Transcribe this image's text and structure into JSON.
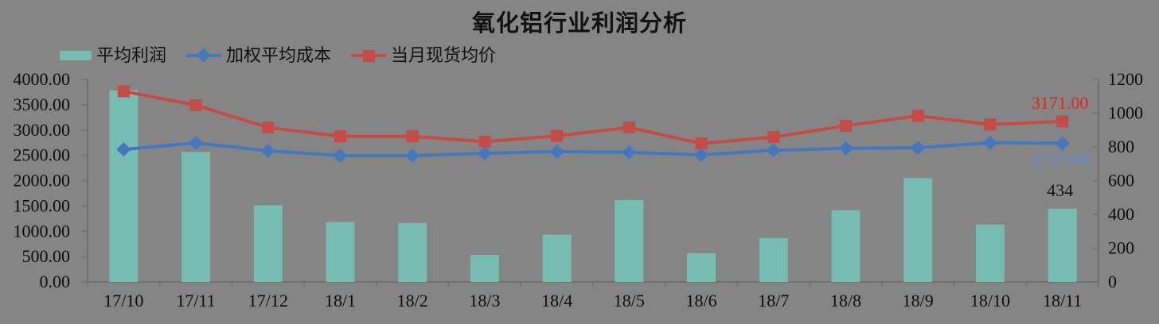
{
  "chart_data": {
    "type": "combo-bar-line",
    "title": "氧化铝行业利润分析",
    "categories": [
      "17/10",
      "17/11",
      "17/12",
      "18/1",
      "18/2",
      "18/3",
      "18/4",
      "18/5",
      "18/6",
      "18/7",
      "18/8",
      "18/9",
      "18/10",
      "18/11"
    ],
    "series": [
      {
        "name": "平均利润",
        "type": "bar",
        "axis": "right",
        "color": "#76BCB1",
        "values": [
          1135,
          770,
          455,
          355,
          350,
          160,
          280,
          485,
          170,
          260,
          425,
          615,
          340,
          434
        ],
        "end_label": "434",
        "end_label_color": "#141414"
      },
      {
        "name": "加权平均成本",
        "type": "line",
        "marker": "diamond",
        "axis": "left",
        "color": "#4577BE",
        "values": [
          2615,
          2745,
          2590,
          2495,
          2495,
          2540,
          2575,
          2560,
          2510,
          2600,
          2640,
          2650,
          2750,
          2737
        ],
        "end_label": "2737.00",
        "end_label_color": "#5E8BD8"
      },
      {
        "name": "当月现货均价",
        "type": "line",
        "marker": "square",
        "axis": "left",
        "color": "#C54B46",
        "values": [
          3765,
          3490,
          3050,
          2875,
          2875,
          2770,
          2885,
          3050,
          2735,
          2860,
          3085,
          3280,
          3110,
          3171
        ],
        "end_label": "3171.00",
        "end_label_color": "#E0261A"
      }
    ],
    "left_axis": {
      "min": 0,
      "max": 4000,
      "ticks": [
        "4000.00",
        "3500.00",
        "3000.00",
        "2500.00",
        "2000.00",
        "1500.00",
        "1000.00",
        "500.00",
        "0.00"
      ]
    },
    "right_axis": {
      "min": 0,
      "max": 1200,
      "ticks": [
        "1200",
        "1000",
        "800",
        "600",
        "400",
        "200",
        "0"
      ]
    },
    "legend_position": "top-left",
    "grid": "off",
    "colors": {
      "background": "#858585",
      "axis": "#707070",
      "tick_text": "#0d0d0d"
    }
  }
}
